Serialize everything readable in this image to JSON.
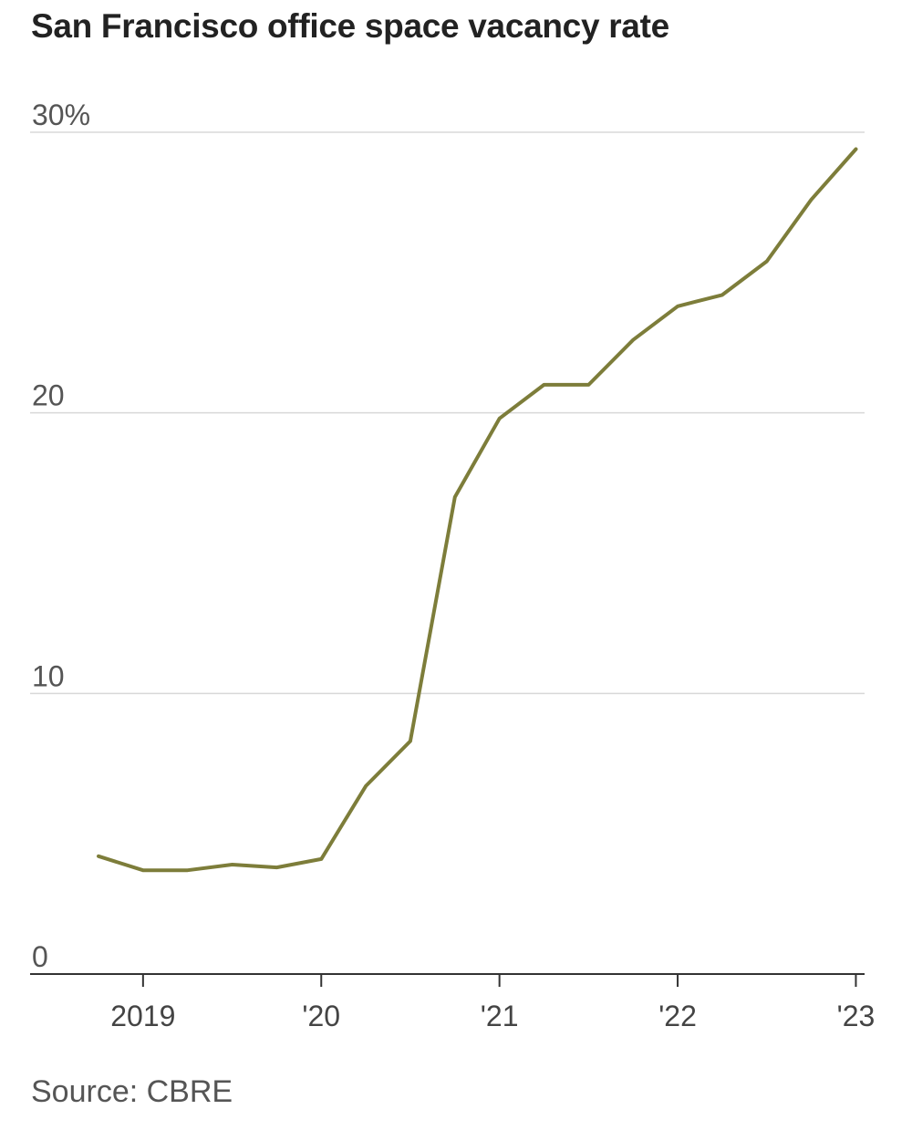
{
  "title": "San Francisco office space vacancy rate",
  "source": "Source: CBRE",
  "chart_data": {
    "type": "line",
    "title": "San Francisco office space vacancy rate",
    "xlabel": "",
    "ylabel": "",
    "ylim": [
      0,
      30
    ],
    "grid": true,
    "y_ticks": [
      0,
      10,
      20,
      30
    ],
    "y_tick_labels": [
      "0",
      "10",
      "20",
      "30%"
    ],
    "x_ticks": [
      "Q1 2019",
      "Q1 2020",
      "Q1 2021",
      "Q1 2022",
      "Q1 2023"
    ],
    "x_tick_labels": [
      "2019",
      "'20",
      "'21",
      "'22",
      "'23"
    ],
    "line_color": "#7d7d3a",
    "x": [
      "Q4 2018",
      "Q1 2019",
      "Q2 2019",
      "Q3 2019",
      "Q4 2019",
      "Q1 2020",
      "Q2 2020",
      "Q3 2020",
      "Q4 2020",
      "Q1 2021",
      "Q2 2021",
      "Q3 2021",
      "Q4 2021",
      "Q1 2022",
      "Q2 2022",
      "Q3 2022",
      "Q4 2022",
      "Q1 2023"
    ],
    "series": [
      {
        "values": [
          4.2,
          3.7,
          3.7,
          3.9,
          3.8,
          4.1,
          6.7,
          8.3,
          17.0,
          19.8,
          21.0,
          21.0,
          22.6,
          23.8,
          24.2,
          25.4,
          27.6,
          29.4
        ]
      }
    ],
    "source": "Source: CBRE"
  }
}
